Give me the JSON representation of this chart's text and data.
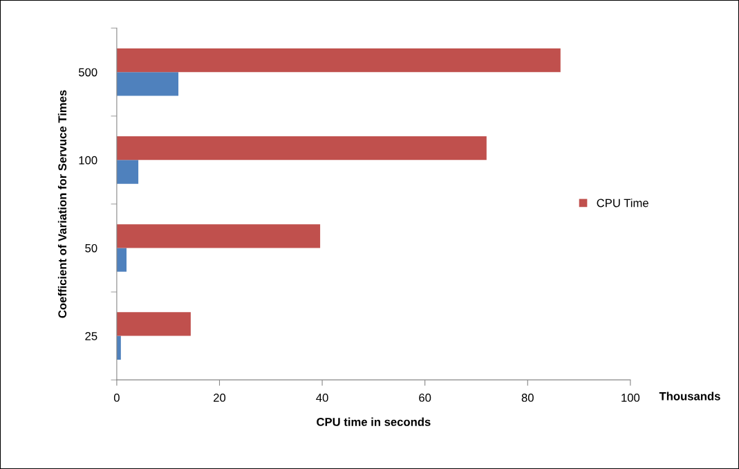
{
  "chart_data": {
    "type": "bar",
    "orientation": "horizontal",
    "xlabel": "CPU time in seconds",
    "ylabel": "Coefficient of Variation for Servuce Times",
    "annotations": [
      "Thousands"
    ],
    "categories": [
      "500",
      "100",
      "50",
      "25"
    ],
    "series": [
      {
        "color": "#4f81bd",
        "values": [
          12.0,
          4.2,
          1.9,
          0.8
        ]
      },
      {
        "name": "CPU Time",
        "color": "#c0504d",
        "values": [
          86.4,
          72.0,
          39.6,
          14.4
        ]
      }
    ],
    "xlim": [
      0,
      100
    ],
    "xticks": [
      0,
      20,
      40,
      60,
      80,
      100
    ],
    "grid": false,
    "legend": "right"
  }
}
